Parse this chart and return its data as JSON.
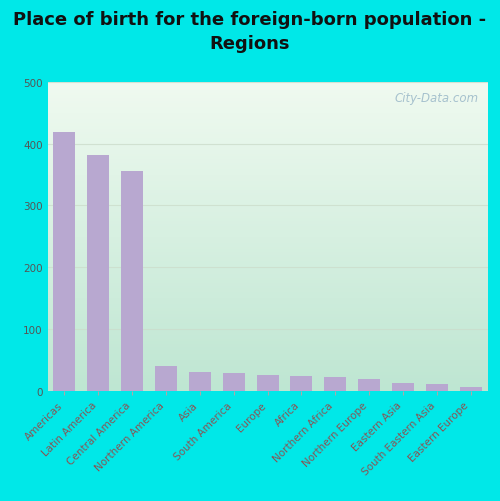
{
  "title": "Place of birth for the foreign-born population -\nRegions",
  "categories": [
    "Americas",
    "Latin America",
    "Central America",
    "Northern America",
    "Asia",
    "South America",
    "Europe",
    "Africa",
    "Northern Africa",
    "Northern Europe",
    "Eastern Asia",
    "South Eastern Asia",
    "Eastern Europe"
  ],
  "values": [
    418,
    381,
    355,
    40,
    30,
    28,
    26,
    23,
    22,
    18,
    12,
    11,
    5
  ],
  "bar_color": "#b8a8d0",
  "ylim": [
    0,
    500
  ],
  "yticks": [
    0,
    100,
    200,
    300,
    400,
    500
  ],
  "outer_background": "#00e8e8",
  "title_fontsize": 13,
  "tick_fontsize": 7.5,
  "watermark": "City-Data.com",
  "grid_color": "#ccddcc",
  "bg_top_color": "#f0f8f0",
  "bg_bottom_color": "#c8eedd"
}
